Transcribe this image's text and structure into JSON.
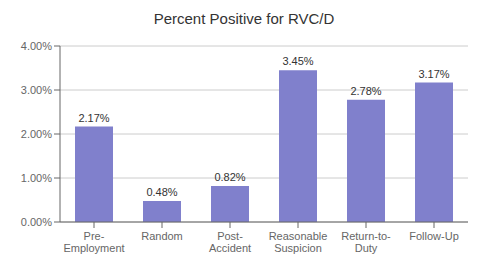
{
  "chart_data": {
    "type": "bar",
    "title": "Percent Positive for RVC/D",
    "categories": [
      "Pre-\nEmployment",
      "Random",
      "Post-\nAccident",
      "Reasonable\nSuspicion",
      "Return-to-\nDuty",
      "Follow-Up"
    ],
    "values": [
      2.17,
      0.48,
      0.82,
      3.45,
      2.78,
      3.17
    ],
    "value_labels": [
      "2.17%",
      "0.48%",
      "0.82%",
      "3.45%",
      "2.78%",
      "3.17%"
    ],
    "data_labels": true,
    "color": "#8080CC",
    "ylim": [
      0,
      4.0
    ],
    "yticks": [
      {
        "value": 0.0,
        "label": "0.00%"
      },
      {
        "value": 1.0,
        "label": "1.00%"
      },
      {
        "value": 2.0,
        "label": "2.00%"
      },
      {
        "value": 3.0,
        "label": "3.00%"
      },
      {
        "value": 4.0,
        "label": "4.00%"
      }
    ],
    "grid": true
  }
}
